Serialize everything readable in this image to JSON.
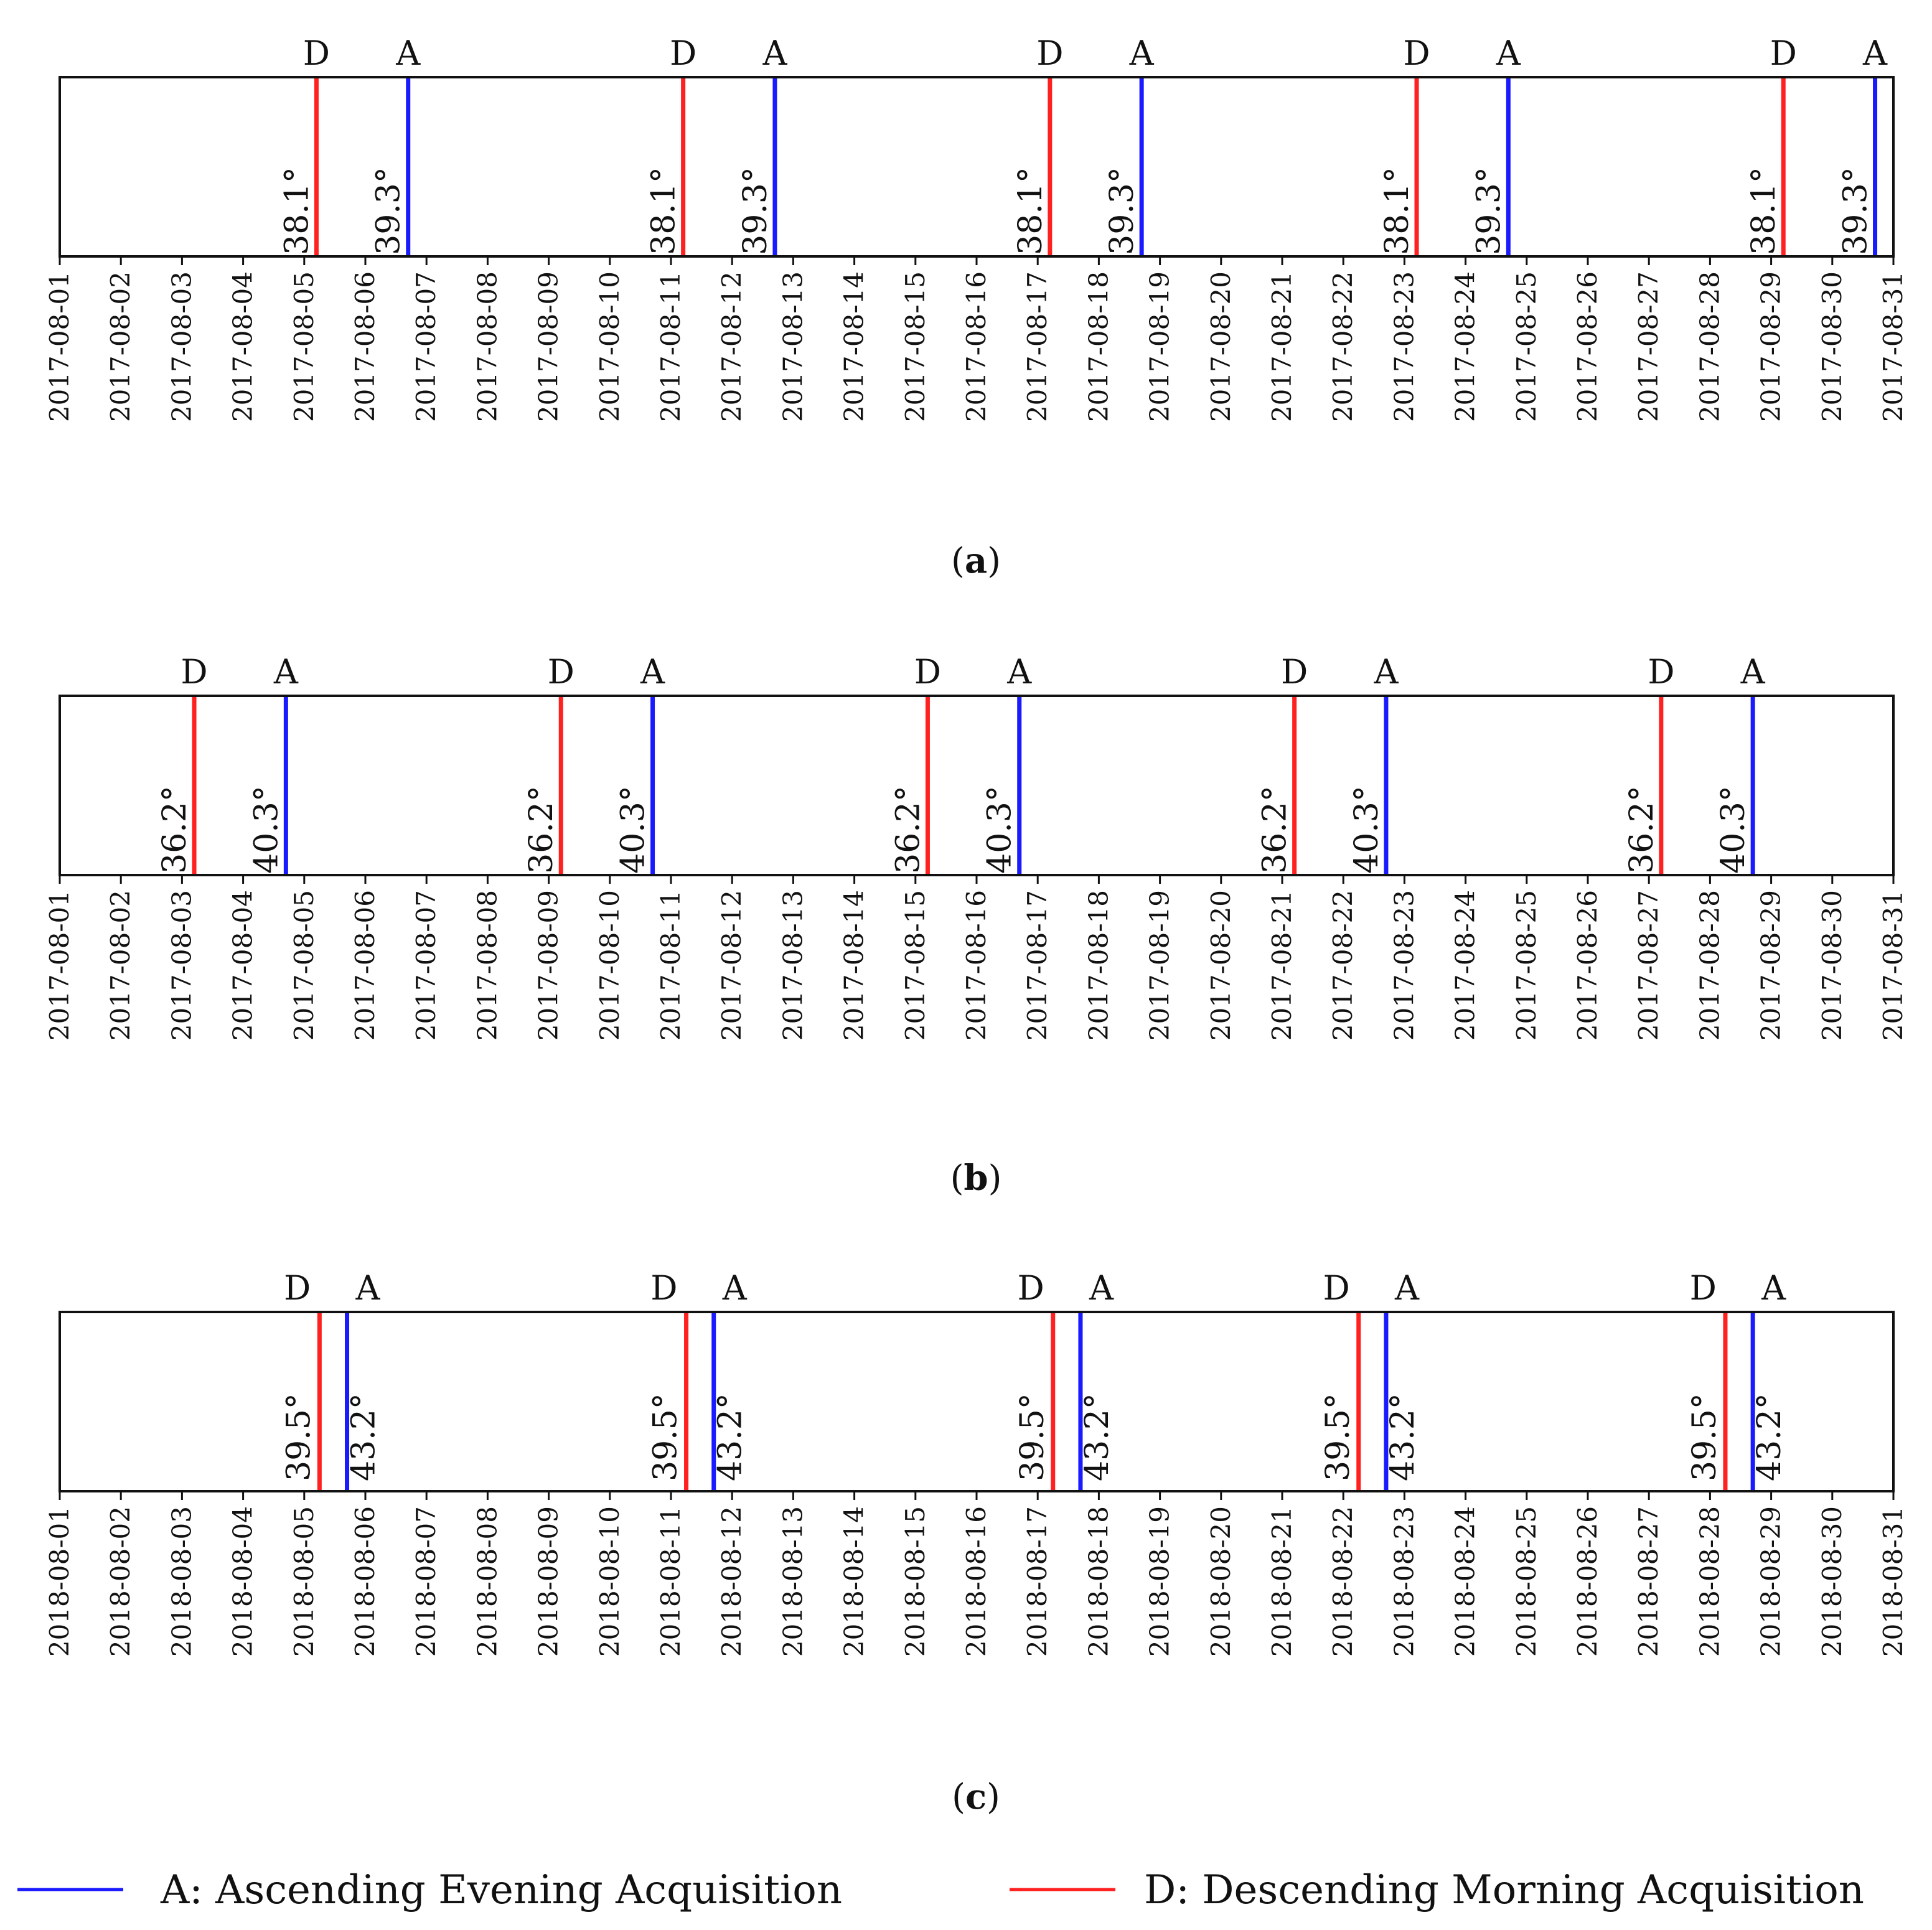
{
  "figure": {
    "legend": [
      {
        "code": "A",
        "label": "A: Ascending Evening Acquisition",
        "color": "#1a1aff"
      },
      {
        "code": "D",
        "label": "D: Descending Morning Acquisition",
        "color": "#ff2020"
      }
    ]
  },
  "chart_data": [
    {
      "type": "timeline",
      "caption": "a",
      "x_range": [
        "2017-08-01",
        "2017-08-31"
      ],
      "ticks": [
        "2017-08-01",
        "2017-08-02",
        "2017-08-03",
        "2017-08-04",
        "2017-08-05",
        "2017-08-06",
        "2017-08-07",
        "2017-08-08",
        "2017-08-09",
        "2017-08-10",
        "2017-08-11",
        "2017-08-12",
        "2017-08-13",
        "2017-08-14",
        "2017-08-15",
        "2017-08-16",
        "2017-08-17",
        "2017-08-18",
        "2017-08-19",
        "2017-08-20",
        "2017-08-21",
        "2017-08-22",
        "2017-08-23",
        "2017-08-24",
        "2017-08-25",
        "2017-08-26",
        "2017-08-27",
        "2017-08-28",
        "2017-08-29",
        "2017-08-30",
        "2017-08-31"
      ],
      "series": [
        {
          "name": "D",
          "color": "#ff2020",
          "angle": "38.1°",
          "days": [
            5.2,
            11.2,
            17.2,
            23.2,
            29.2
          ]
        },
        {
          "name": "A",
          "color": "#1a1aff",
          "angle": "39.3°",
          "days": [
            6.7,
            12.7,
            18.7,
            24.7,
            30.7
          ]
        }
      ]
    },
    {
      "type": "timeline",
      "caption": "b",
      "x_range": [
        "2017-08-01",
        "2017-08-31"
      ],
      "ticks": [
        "2017-08-01",
        "2017-08-02",
        "2017-08-03",
        "2017-08-04",
        "2017-08-05",
        "2017-08-06",
        "2017-08-07",
        "2017-08-08",
        "2017-08-09",
        "2017-08-10",
        "2017-08-11",
        "2017-08-12",
        "2017-08-13",
        "2017-08-14",
        "2017-08-15",
        "2017-08-16",
        "2017-08-17",
        "2017-08-18",
        "2017-08-19",
        "2017-08-20",
        "2017-08-21",
        "2017-08-22",
        "2017-08-23",
        "2017-08-24",
        "2017-08-25",
        "2017-08-26",
        "2017-08-27",
        "2017-08-28",
        "2017-08-29",
        "2017-08-30",
        "2017-08-31"
      ],
      "series": [
        {
          "name": "D",
          "color": "#ff2020",
          "angle": "36.2°",
          "days": [
            3.2,
            9.2,
            15.2,
            21.2,
            27.2
          ]
        },
        {
          "name": "A",
          "color": "#1a1aff",
          "angle": "40.3°",
          "days": [
            4.7,
            10.7,
            16.7,
            22.7,
            28.7
          ]
        }
      ]
    },
    {
      "type": "timeline",
      "caption": "c",
      "x_range": [
        "2018-08-01",
        "2018-08-31"
      ],
      "ticks": [
        "2018-08-01",
        "2018-08-02",
        "2018-08-03",
        "2018-08-04",
        "2018-08-05",
        "2018-08-06",
        "2018-08-07",
        "2018-08-08",
        "2018-08-09",
        "2018-08-10",
        "2018-08-11",
        "2018-08-12",
        "2018-08-13",
        "2018-08-14",
        "2018-08-15",
        "2018-08-16",
        "2018-08-17",
        "2018-08-18",
        "2018-08-19",
        "2018-08-20",
        "2018-08-21",
        "2018-08-22",
        "2018-08-23",
        "2018-08-24",
        "2018-08-25",
        "2018-08-26",
        "2018-08-27",
        "2018-08-28",
        "2018-08-29",
        "2018-08-30",
        "2018-08-31"
      ],
      "series": [
        {
          "name": "D",
          "color": "#ff2020",
          "angle": "39.5°",
          "days": [
            5.25,
            11.25,
            17.25,
            22.25,
            28.25
          ]
        },
        {
          "name": "A",
          "color": "#1a1aff",
          "angle": "43.2°",
          "days": [
            5.7,
            11.7,
            17.7,
            22.7,
            28.7
          ]
        }
      ]
    }
  ]
}
